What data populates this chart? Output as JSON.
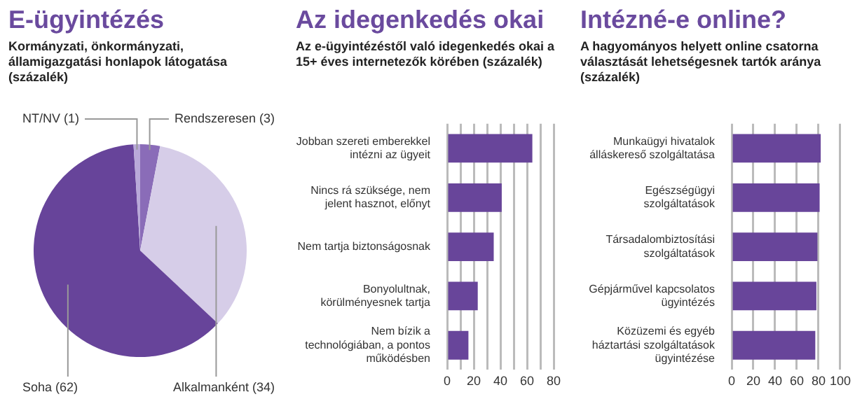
{
  "chart_data": [
    {
      "type": "pie",
      "title": "E-ügyintézés",
      "subtitle": "Kormányzati, önkormányzati, államigazgatási honlapok látogatása (százalék)",
      "categories": [
        "Rendszeresen (3)",
        "Alkalmanként (34)",
        "Soha (62)",
        "NT/NV (1)"
      ],
      "values": [
        3,
        34,
        62,
        1
      ],
      "colors": [
        "#8a6cb8",
        "#d6cde8",
        "#67449a",
        "#b9a9d9"
      ]
    },
    {
      "type": "bar",
      "orientation": "horizontal",
      "title": "Az idegenkedés okai",
      "subtitle": "Az e-ügyintézéstől való idegenkedés okai a 15+ éves internetezők körében (százalék)",
      "categories": [
        "Jobban szereti emberekkel intézni az ügyeit",
        "Nincs rá szüksége, nem jelent hasznot, előnyt",
        "Nem tartja biztonságosnak",
        "Bonyolultnak, körülményesnek tartja",
        "Nem bízik a technológiában, a pontos működésben"
      ],
      "values": [
        64,
        41,
        35,
        23,
        16
      ],
      "color": "#68459a",
      "xlim": [
        0,
        80
      ],
      "xticks": [
        0,
        {
          "value": 10,
          "label": null
        },
        20,
        {
          "value": 30,
          "label": null
        },
        40,
        {
          "value": 50,
          "label": null
        },
        60,
        {
          "value": 70,
          "label": null
        },
        80
      ],
      "grid": "x"
    },
    {
      "type": "bar",
      "orientation": "horizontal",
      "title": "Intézné-e online?",
      "subtitle": "A hagyományos helyett online csatorna választását lehetségesnek tartók aránya (százalék)",
      "categories": [
        "Munkaügyi hivatalok álláskereső szolgáltatása",
        "Egészségügyi szolgáltatások",
        "Társadalombiztosítási szolgáltatások",
        "Gépjárművel kapcsolatos ügyintézés",
        "Közüzemi és egyéb háztartási szolgáltatások ügyintézése"
      ],
      "values": [
        82,
        81,
        79,
        78,
        77
      ],
      "color": "#68459a",
      "xlim": [
        0,
        100
      ],
      "xticks": [
        0,
        20,
        40,
        60,
        80,
        100
      ],
      "grid": "x"
    }
  ]
}
